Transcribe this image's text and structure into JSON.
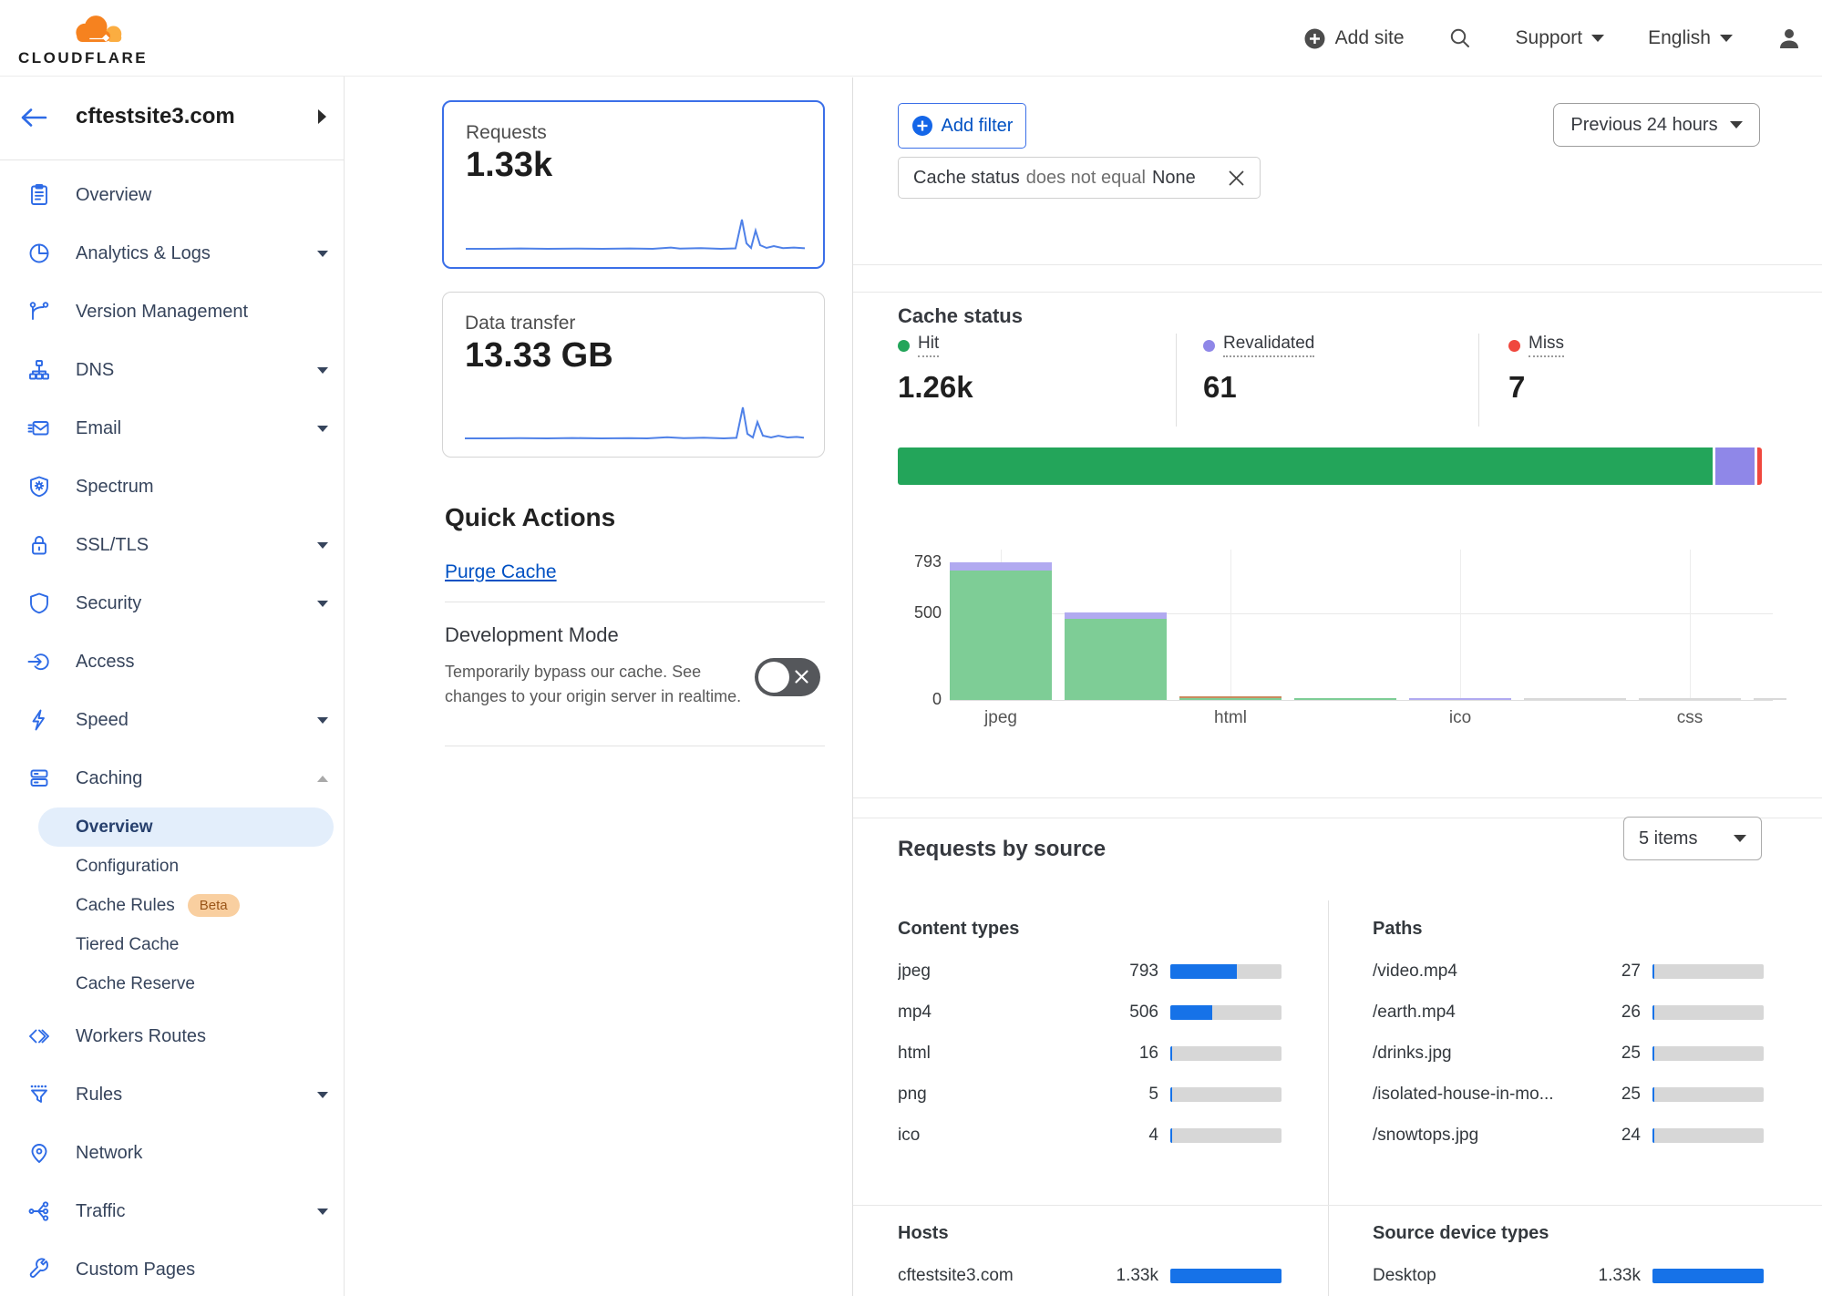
{
  "topbar": {
    "logo_text": "CLOUDFLARE",
    "add_site_label": "Add site",
    "support_label": "Support",
    "language_label": "English"
  },
  "sidebar": {
    "site_name": "cftestsite3.com",
    "items": [
      {
        "label": "Overview",
        "icon": "clipboard"
      },
      {
        "label": "Analytics & Logs",
        "icon": "pie-chart",
        "chevron": "down"
      },
      {
        "label": "Version Management",
        "icon": "branch"
      },
      {
        "label": "DNS",
        "icon": "dns-tree",
        "chevron": "down"
      },
      {
        "label": "Email",
        "icon": "envelope",
        "chevron": "down"
      },
      {
        "label": "Spectrum",
        "icon": "shield-spectrum"
      },
      {
        "label": "SSL/TLS",
        "icon": "lock",
        "chevron": "down"
      },
      {
        "label": "Security",
        "icon": "shield",
        "chevron": "down"
      },
      {
        "label": "Access",
        "icon": "access"
      },
      {
        "label": "Speed",
        "icon": "bolt",
        "chevron": "down"
      },
      {
        "label": "Caching",
        "icon": "cache-server",
        "chevron": "up"
      },
      {
        "label": "Overview",
        "sub": true,
        "selected": true
      },
      {
        "label": "Configuration",
        "sub": true
      },
      {
        "label": "Cache Rules",
        "sub": true,
        "badge": "Beta"
      },
      {
        "label": "Tiered Cache",
        "sub": true
      },
      {
        "label": "Cache Reserve",
        "sub": true,
        "last_sub": true
      },
      {
        "label": "Workers Routes",
        "icon": "code-brackets"
      },
      {
        "label": "Rules",
        "icon": "funnel",
        "chevron": "down"
      },
      {
        "label": "Network",
        "icon": "location-pin"
      },
      {
        "label": "Traffic",
        "icon": "share-network",
        "chevron": "down"
      },
      {
        "label": "Custom Pages",
        "icon": "wrench"
      }
    ]
  },
  "summary_cards": [
    {
      "label": "Requests",
      "value": "1.33k",
      "selected": true
    },
    {
      "label": "Data transfer",
      "value": "13.33 GB",
      "selected": false
    }
  ],
  "quick_actions": {
    "title": "Quick Actions",
    "purge_cache_label": "Purge Cache",
    "development_mode": {
      "title": "Development Mode",
      "description": "Temporarily bypass our cache. See changes to your origin server in realtime.",
      "enabled": false
    }
  },
  "filter_bar": {
    "add_filter_label": "Add filter",
    "chip": {
      "field": "Cache status",
      "operator": "does not equal",
      "value": "None"
    },
    "time_range": "Previous 24 hours"
  },
  "cache_status": {
    "title": "Cache status",
    "metrics": [
      {
        "name": "Hit",
        "value": "1.26k",
        "color": "#23a55a"
      },
      {
        "name": "Revalidated",
        "value": "61",
        "color": "#8f87e8"
      },
      {
        "name": "Miss",
        "value": "7",
        "color": "#f0483e"
      }
    ]
  },
  "requests_by_source": {
    "title": "Requests by source",
    "items_select": "5 items",
    "total": 1330,
    "groups": [
      {
        "title": "Content types",
        "rows": [
          {
            "label": "jpeg",
            "value": 793,
            "display": "793"
          },
          {
            "label": "mp4",
            "value": 506,
            "display": "506"
          },
          {
            "label": "html",
            "value": 16,
            "display": "16"
          },
          {
            "label": "png",
            "value": 5,
            "display": "5"
          },
          {
            "label": "ico",
            "value": 4,
            "display": "4"
          }
        ]
      },
      {
        "title": "Paths",
        "rows": [
          {
            "label": "/video.mp4",
            "value": 27,
            "display": "27"
          },
          {
            "label": "/earth.mp4",
            "value": 26,
            "display": "26"
          },
          {
            "label": "/drinks.jpg",
            "value": 25,
            "display": "25"
          },
          {
            "label": "/isolated-house-in-mo...",
            "value": 25,
            "display": "25"
          },
          {
            "label": "/snowtops.jpg",
            "value": 24,
            "display": "24"
          }
        ]
      },
      {
        "title": "Hosts",
        "rows": [
          {
            "label": "cftestsite3.com",
            "value": 1330,
            "display": "1.33k"
          }
        ]
      },
      {
        "title": "Source device types",
        "rows": [
          {
            "label": "Desktop",
            "value": 1330,
            "display": "1.33k"
          }
        ]
      }
    ]
  },
  "chart_data": [
    {
      "id": "cache-status-summary",
      "type": "bar",
      "subtype": "horizontal-stacked",
      "title": "Cache status",
      "categories": [
        "Hit",
        "Revalidated",
        "Miss"
      ],
      "values": [
        1260,
        61,
        7
      ],
      "display_values": [
        "1.26k",
        "61",
        "7"
      ],
      "colors": [
        "#23a55a",
        "#8f87e8",
        "#f0483e"
      ]
    },
    {
      "id": "cache-status-by-type",
      "type": "bar",
      "categories": [
        "jpeg",
        "",
        "html",
        "",
        "ico",
        "",
        "css",
        ""
      ],
      "tick_labels": [
        "jpeg",
        "html",
        "ico",
        "css"
      ],
      "values": [
        793,
        506,
        16,
        5,
        4,
        2,
        1,
        1
      ],
      "ylim": [
        0,
        793
      ],
      "yticks": [
        793,
        500,
        0
      ],
      "grid": "horizontal gridline at 500; vertical gridlines at labeled categories",
      "bars": [
        {
          "label": "jpeg",
          "value": 793,
          "segments": [
            {
              "color": "#b1aaf0",
              "h": 9
            },
            {
              "color": "#7ecd96",
              "h": 142
            }
          ]
        },
        {
          "label": "",
          "value": 506,
          "segments": [
            {
              "color": "#b1aaf0",
              "h": 7
            },
            {
              "color": "#7ecd96",
              "h": 89
            }
          ]
        },
        {
          "label": "html",
          "value": 16,
          "segments": [
            {
              "color": "#c98a5e",
              "h": 2
            },
            {
              "color": "#7ecd96",
              "h": 2
            }
          ]
        },
        {
          "label": "",
          "value": 5,
          "segments": [
            {
              "color": "#7ecd96",
              "h": 2
            }
          ]
        },
        {
          "label": "ico",
          "value": 4,
          "segments": [
            {
              "color": "#b1aaf0",
              "h": 2
            }
          ]
        },
        {
          "label": "",
          "value": 2,
          "segments": [
            {
              "color": "#d9d9d9",
              "h": 2
            }
          ]
        },
        {
          "label": "css",
          "value": 1,
          "segments": [
            {
              "color": "#d9d9d9",
              "h": 2
            }
          ]
        },
        {
          "label": "",
          "value": 1,
          "segments": [
            {
              "color": "#d9d9d9",
              "h": 2
            }
          ]
        }
      ]
    },
    {
      "id": "requests-sparkline",
      "type": "line",
      "title": "Requests",
      "total_display": "1.33k",
      "shape": "flat near zero for most of 24h with tall spike cluster near the end"
    },
    {
      "id": "data-transfer-sparkline",
      "type": "line",
      "title": "Data transfer",
      "total_display": "13.33 GB",
      "shape": "flat near zero for most of 24h with tall spike cluster near the end"
    }
  ],
  "colors": {
    "accent_blue": "#0051c3",
    "icon_blue": "#2e6be6",
    "hit_green": "#23a55a",
    "revalidated_purple": "#8f87e8",
    "miss_red": "#f0483e",
    "bar_blue": "#1672e8",
    "spark_blue": "#4f81e8",
    "beta_bg": "#f9cfa0",
    "beta_text": "#9a5518",
    "selected_pill_bg": "#e3eefb"
  }
}
